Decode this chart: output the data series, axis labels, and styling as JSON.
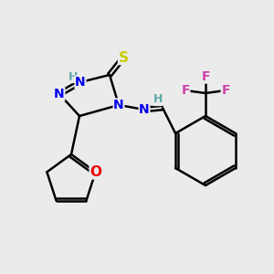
{
  "background_color": "#ebebeb",
  "bond_color": "#000000",
  "atom_colors": {
    "N": "#0000ee",
    "H": "#5faaaa",
    "S": "#cccc00",
    "O": "#ee0000",
    "F": "#cc44aa",
    "C": "#000000"
  },
  "figsize": [
    3.0,
    3.0
  ],
  "dpi": 100
}
